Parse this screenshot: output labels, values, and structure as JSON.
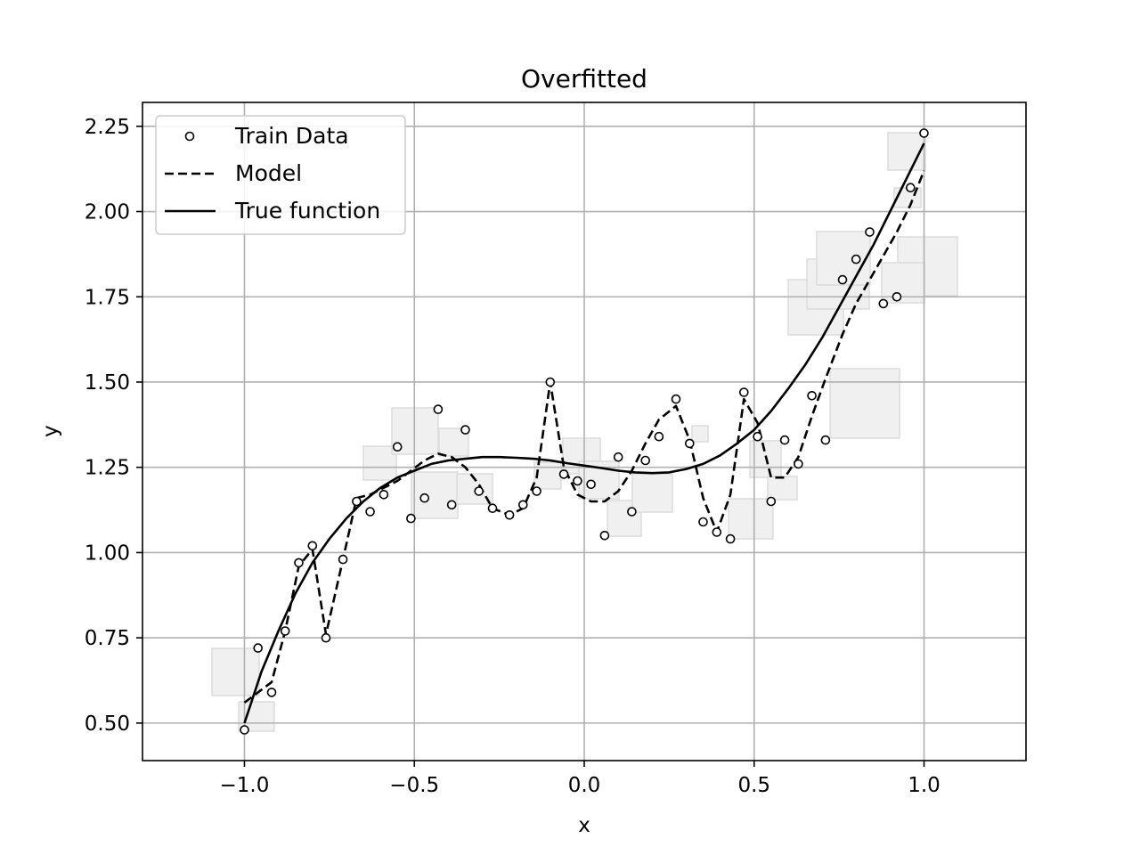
{
  "chart_data": {
    "type": "scatter",
    "title": "Overfitted",
    "xlabel": "x",
    "ylabel": "y",
    "xlim": [
      -1.3,
      1.3
    ],
    "ylim": [
      0.39,
      2.32
    ],
    "xticks": [
      -1.0,
      -0.5,
      0.0,
      0.5,
      1.0
    ],
    "xtick_labels": [
      "−1.0",
      "−0.5",
      "0.0",
      "0.5",
      "1.0"
    ],
    "yticks": [
      0.5,
      0.75,
      1.0,
      1.25,
      1.5,
      1.75,
      2.0,
      2.25
    ],
    "ytick_labels": [
      "0.50",
      "0.75",
      "1.00",
      "1.25",
      "1.50",
      "1.75",
      "2.00",
      "2.25"
    ],
    "grid": true,
    "legend_position": "upper-left",
    "legend": [
      "Train Data",
      "Model",
      "True function"
    ],
    "series": [
      {
        "name": "Train Data",
        "style": "markers",
        "marker": "open-circle",
        "color": "#000000",
        "x": [
          -1.0,
          -0.96,
          -0.92,
          -0.88,
          -0.84,
          -0.8,
          -0.76,
          -0.71,
          -0.67,
          -0.63,
          -0.59,
          -0.55,
          -0.51,
          -0.47,
          -0.43,
          -0.39,
          -0.35,
          -0.31,
          -0.27,
          -0.22,
          -0.18,
          -0.14,
          -0.1,
          -0.06,
          -0.02,
          0.02,
          0.06,
          0.1,
          0.14,
          0.18,
          0.22,
          0.27,
          0.31,
          0.35,
          0.39,
          0.43,
          0.47,
          0.51,
          0.55,
          0.59,
          0.63,
          0.67,
          0.71,
          0.76,
          0.8,
          0.84,
          0.88,
          0.92,
          0.96,
          1.0
        ],
        "y": [
          0.48,
          0.72,
          0.59,
          0.77,
          0.97,
          1.02,
          0.75,
          0.98,
          1.15,
          1.12,
          1.17,
          1.31,
          1.1,
          1.16,
          1.42,
          1.14,
          1.36,
          1.18,
          1.13,
          1.11,
          1.14,
          1.18,
          1.5,
          1.23,
          1.21,
          1.2,
          1.05,
          1.28,
          1.12,
          1.27,
          1.34,
          1.45,
          1.32,
          1.09,
          1.06,
          1.04,
          1.47,
          1.34,
          1.15,
          1.33,
          1.26,
          1.46,
          1.33,
          1.8,
          1.86,
          1.94,
          1.73,
          1.75,
          2.07,
          2.23
        ]
      },
      {
        "name": "Model",
        "style": "dashed",
        "color": "#000000",
        "x": [
          -1.0,
          -0.96,
          -0.92,
          -0.88,
          -0.84,
          -0.8,
          -0.76,
          -0.71,
          -0.67,
          -0.63,
          -0.59,
          -0.55,
          -0.51,
          -0.47,
          -0.43,
          -0.39,
          -0.35,
          -0.31,
          -0.27,
          -0.22,
          -0.18,
          -0.14,
          -0.1,
          -0.06,
          -0.02,
          0.02,
          0.06,
          0.1,
          0.14,
          0.18,
          0.22,
          0.27,
          0.31,
          0.35,
          0.39,
          0.43,
          0.47,
          0.51,
          0.55,
          0.59,
          0.63,
          0.67,
          0.71,
          0.76,
          0.8,
          0.84,
          0.88,
          0.92,
          0.96,
          1.0
        ],
        "y": [
          0.56,
          0.59,
          0.62,
          0.77,
          0.96,
          1.01,
          0.76,
          0.98,
          1.16,
          1.17,
          1.19,
          1.21,
          1.24,
          1.27,
          1.29,
          1.28,
          1.25,
          1.2,
          1.13,
          1.11,
          1.13,
          1.22,
          1.5,
          1.25,
          1.17,
          1.15,
          1.15,
          1.18,
          1.24,
          1.32,
          1.39,
          1.43,
          1.33,
          1.16,
          1.06,
          1.17,
          1.45,
          1.38,
          1.22,
          1.22,
          1.28,
          1.4,
          1.51,
          1.64,
          1.73,
          1.8,
          1.87,
          1.94,
          2.02,
          2.12
        ]
      },
      {
        "name": "True function",
        "style": "solid",
        "color": "#000000",
        "x": [
          -1.0,
          -0.95,
          -0.9,
          -0.85,
          -0.8,
          -0.75,
          -0.7,
          -0.65,
          -0.6,
          -0.55,
          -0.5,
          -0.45,
          -0.4,
          -0.35,
          -0.3,
          -0.25,
          -0.2,
          -0.15,
          -0.1,
          -0.05,
          0.0,
          0.05,
          0.1,
          0.15,
          0.2,
          0.25,
          0.3,
          0.35,
          0.4,
          0.45,
          0.5,
          0.55,
          0.6,
          0.65,
          0.7,
          0.75,
          0.8,
          0.85,
          0.9,
          0.95,
          1.0
        ],
        "y": [
          0.5,
          0.65,
          0.77,
          0.88,
          0.97,
          1.04,
          1.1,
          1.15,
          1.19,
          1.22,
          1.24,
          1.26,
          1.27,
          1.275,
          1.28,
          1.28,
          1.278,
          1.275,
          1.27,
          1.262,
          1.255,
          1.248,
          1.24,
          1.235,
          1.233,
          1.235,
          1.245,
          1.26,
          1.285,
          1.32,
          1.36,
          1.415,
          1.48,
          1.55,
          1.63,
          1.72,
          1.81,
          1.9,
          2.0,
          2.1,
          2.2
        ]
      }
    ]
  }
}
